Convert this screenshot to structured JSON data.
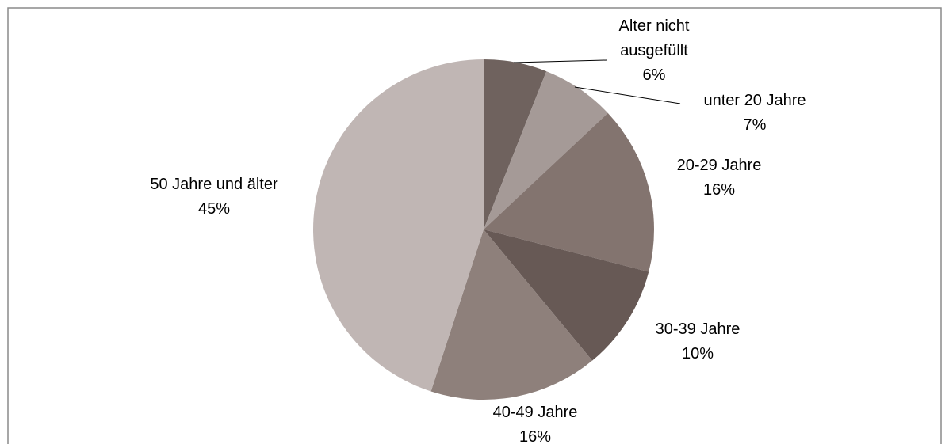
{
  "chart_data": {
    "type": "pie",
    "categories": [
      "Alter nicht ausgefüllt",
      "unter 20 Jahre",
      "20-29 Jahre",
      "30-39 Jahre",
      "40-49 Jahre",
      "50 Jahre und älter"
    ],
    "values": [
      6,
      7,
      16,
      10,
      16,
      45
    ],
    "value_labels": [
      "6%",
      "7%",
      "16%",
      "10%",
      "16%",
      "45%"
    ],
    "colors": [
      "#6f625e",
      "#a59a97",
      "#83746f",
      "#675955",
      "#8e807b",
      "#c0b6b4"
    ]
  }
}
